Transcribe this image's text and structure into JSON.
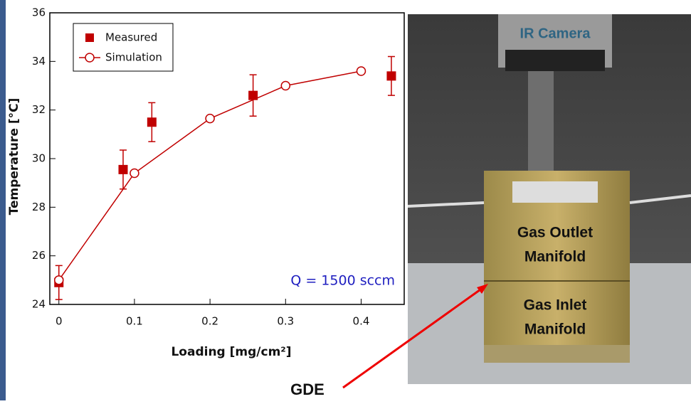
{
  "chart_data": {
    "type": "line",
    "xlabel": "Loading [mg/cm²]",
    "ylabel": "Temperature [°C]",
    "annotation": "Q = 1500 sccm",
    "xlim": [
      -0.012,
      0.457
    ],
    "ylim": [
      24,
      36
    ],
    "xticks": [
      0,
      0.1,
      0.2,
      0.3,
      0.4
    ],
    "yticks": [
      24,
      26,
      28,
      30,
      32,
      34,
      36
    ],
    "legend": "upper left",
    "series": [
      {
        "name": "Measured",
        "color": "#c00000",
        "marker": "square",
        "line": false,
        "x": [
          0,
          0.085,
          0.123,
          0.257,
          0.44
        ],
        "values": [
          24.9,
          29.55,
          31.5,
          32.6,
          33.4
        ],
        "errors": [
          0.7,
          0.8,
          0.8,
          0.85,
          0.8
        ]
      },
      {
        "name": "Simulation",
        "color": "#c00000",
        "marker": "open-circle",
        "line": true,
        "x": [
          0,
          0.1,
          0.2,
          0.3,
          0.4
        ],
        "values": [
          25.0,
          29.4,
          31.65,
          33.0,
          33.6
        ]
      }
    ]
  },
  "photo": {
    "camera_label": "IR Camera",
    "outlet_label": [
      "Gas Outlet",
      "Manifold"
    ],
    "inlet_label": [
      "Gas Inlet",
      "Manifold"
    ],
    "pointer_label": "GDE"
  }
}
